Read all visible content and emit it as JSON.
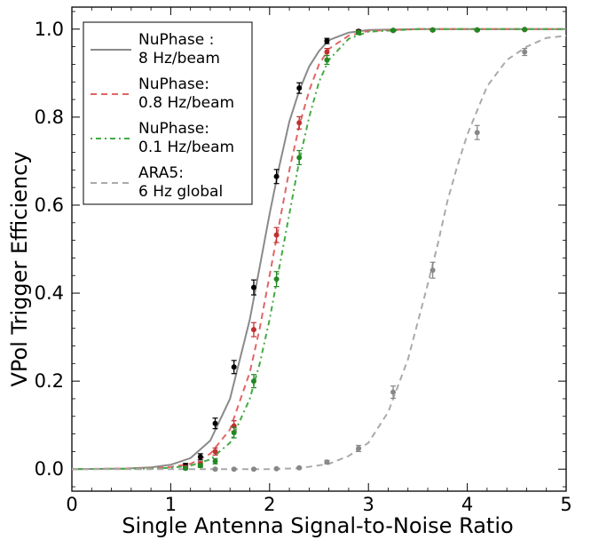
{
  "chart_data": {
    "type": "line",
    "xlabel": "Single Antenna Signal-to-Noise Ratio",
    "ylabel": "VPol Trigger Efficiency",
    "xlim": [
      0,
      5
    ],
    "ylim": [
      -0.05,
      1.05
    ],
    "x_ticks": [
      0,
      1,
      2,
      3,
      4,
      5
    ],
    "y_ticks": [
      0.0,
      0.2,
      0.4,
      0.6,
      0.8,
      1.0
    ],
    "x_tick_labels": [
      "0",
      "1",
      "2",
      "3",
      "4",
      "5"
    ],
    "y_tick_labels": [
      "0.0",
      "0.2",
      "0.4",
      "0.6",
      "0.8",
      "1.0"
    ],
    "grid": false,
    "legend_position": "top-left",
    "series": [
      {
        "name": "NuPhase :\n8 Hz/beam",
        "color": "#8a8a8a",
        "marker_color": "#000000",
        "linestyle": "solid",
        "curve": [
          [
            0,
            0
          ],
          [
            0.5,
            0.001
          ],
          [
            0.8,
            0.004
          ],
          [
            1.0,
            0.01
          ],
          [
            1.2,
            0.025
          ],
          [
            1.4,
            0.065
          ],
          [
            1.6,
            0.16
          ],
          [
            1.8,
            0.34
          ],
          [
            1.9,
            0.46
          ],
          [
            2.0,
            0.58
          ],
          [
            2.1,
            0.69
          ],
          [
            2.2,
            0.79
          ],
          [
            2.3,
            0.86
          ],
          [
            2.4,
            0.915
          ],
          [
            2.5,
            0.95
          ],
          [
            2.6,
            0.975
          ],
          [
            2.8,
            0.992
          ],
          [
            3.0,
            0.998
          ],
          [
            3.5,
            1.0
          ],
          [
            5,
            1.0
          ]
        ],
        "points": [
          {
            "x": 1.15,
            "y": 0.008,
            "err": 0.005
          },
          {
            "x": 1.3,
            "y": 0.028,
            "err": 0.007
          },
          {
            "x": 1.45,
            "y": 0.104,
            "err": 0.012
          },
          {
            "x": 1.64,
            "y": 0.232,
            "err": 0.015
          },
          {
            "x": 1.84,
            "y": 0.413,
            "err": 0.017
          },
          {
            "x": 2.07,
            "y": 0.665,
            "err": 0.016
          },
          {
            "x": 2.3,
            "y": 0.866,
            "err": 0.012
          },
          {
            "x": 2.58,
            "y": 0.973,
            "err": 0.006
          },
          {
            "x": 2.9,
            "y": 0.995,
            "err": 0.003
          },
          {
            "x": 3.25,
            "y": 0.997,
            "err": 0.002
          },
          {
            "x": 3.65,
            "y": 0.998,
            "err": 0.002
          },
          {
            "x": 4.1,
            "y": 0.998,
            "err": 0.002
          },
          {
            "x": 4.58,
            "y": 0.999,
            "err": 0.001
          }
        ]
      },
      {
        "name": "NuPhase:\n0.8 Hz/beam",
        "color": "#e06666",
        "marker_color": "#c03030",
        "linestyle": "dashed",
        "curve": [
          [
            0,
            0
          ],
          [
            0.8,
            0.002
          ],
          [
            1.0,
            0.005
          ],
          [
            1.2,
            0.012
          ],
          [
            1.4,
            0.035
          ],
          [
            1.6,
            0.09
          ],
          [
            1.8,
            0.22
          ],
          [
            1.9,
            0.32
          ],
          [
            2.0,
            0.44
          ],
          [
            2.1,
            0.56
          ],
          [
            2.2,
            0.68
          ],
          [
            2.3,
            0.78
          ],
          [
            2.4,
            0.86
          ],
          [
            2.5,
            0.92
          ],
          [
            2.6,
            0.955
          ],
          [
            2.8,
            0.985
          ],
          [
            3.0,
            0.996
          ],
          [
            3.5,
            1.0
          ],
          [
            5,
            1.0
          ]
        ],
        "points": [
          {
            "x": 1.15,
            "y": 0.004,
            "err": 0.004
          },
          {
            "x": 1.3,
            "y": 0.012,
            "err": 0.005
          },
          {
            "x": 1.45,
            "y": 0.04,
            "err": 0.008
          },
          {
            "x": 1.64,
            "y": 0.098,
            "err": 0.012
          },
          {
            "x": 1.84,
            "y": 0.317,
            "err": 0.016
          },
          {
            "x": 2.07,
            "y": 0.532,
            "err": 0.017
          },
          {
            "x": 2.3,
            "y": 0.787,
            "err": 0.014
          },
          {
            "x": 2.58,
            "y": 0.948,
            "err": 0.008
          },
          {
            "x": 2.9,
            "y": 0.993,
            "err": 0.003
          },
          {
            "x": 3.25,
            "y": 0.997,
            "err": 0.002
          },
          {
            "x": 3.65,
            "y": 0.998,
            "err": 0.002
          },
          {
            "x": 4.1,
            "y": 0.998,
            "err": 0.002
          },
          {
            "x": 4.58,
            "y": 0.999,
            "err": 0.001
          }
        ]
      },
      {
        "name": "NuPhase:\n0.1 Hz/beam",
        "color": "#44aa44",
        "marker_color": "#228822",
        "linestyle": "dashdot",
        "curve": [
          [
            0,
            0
          ],
          [
            0.8,
            0.001
          ],
          [
            1.0,
            0.003
          ],
          [
            1.2,
            0.008
          ],
          [
            1.4,
            0.022
          ],
          [
            1.6,
            0.06
          ],
          [
            1.8,
            0.16
          ],
          [
            1.9,
            0.24
          ],
          [
            2.0,
            0.34
          ],
          [
            2.1,
            0.46
          ],
          [
            2.2,
            0.58
          ],
          [
            2.3,
            0.7
          ],
          [
            2.4,
            0.8
          ],
          [
            2.5,
            0.88
          ],
          [
            2.6,
            0.93
          ],
          [
            2.8,
            0.978
          ],
          [
            3.0,
            0.994
          ],
          [
            3.5,
            1.0
          ],
          [
            5,
            1.0
          ]
        ],
        "points": [
          {
            "x": 1.15,
            "y": 0.002,
            "err": 0.003
          },
          {
            "x": 1.3,
            "y": 0.008,
            "err": 0.004
          },
          {
            "x": 1.45,
            "y": 0.018,
            "err": 0.006
          },
          {
            "x": 1.64,
            "y": 0.083,
            "err": 0.012
          },
          {
            "x": 1.84,
            "y": 0.2,
            "err": 0.015
          },
          {
            "x": 2.07,
            "y": 0.432,
            "err": 0.017
          },
          {
            "x": 2.3,
            "y": 0.708,
            "err": 0.016
          },
          {
            "x": 2.58,
            "y": 0.93,
            "err": 0.01
          },
          {
            "x": 2.9,
            "y": 0.992,
            "err": 0.004
          },
          {
            "x": 3.25,
            "y": 0.997,
            "err": 0.002
          },
          {
            "x": 3.65,
            "y": 0.998,
            "err": 0.002
          },
          {
            "x": 4.1,
            "y": 0.998,
            "err": 0.002
          },
          {
            "x": 4.58,
            "y": 0.999,
            "err": 0.001
          }
        ]
      },
      {
        "name": "ARA5:\n6 Hz global",
        "color": "#aaaaaa",
        "marker_color": "#888888",
        "linestyle": "dashed",
        "curve": [
          [
            0,
            0
          ],
          [
            2.0,
            0.0
          ],
          [
            2.3,
            0.002
          ],
          [
            2.6,
            0.012
          ],
          [
            2.8,
            0.03
          ],
          [
            3.0,
            0.06
          ],
          [
            3.2,
            0.13
          ],
          [
            3.4,
            0.25
          ],
          [
            3.6,
            0.42
          ],
          [
            3.7,
            0.51
          ],
          [
            3.8,
            0.61
          ],
          [
            3.9,
            0.69
          ],
          [
            4.0,
            0.76
          ],
          [
            4.2,
            0.87
          ],
          [
            4.4,
            0.93
          ],
          [
            4.6,
            0.96
          ],
          [
            4.8,
            0.98
          ],
          [
            5,
            0.985
          ]
        ],
        "points": [
          {
            "x": 1.45,
            "y": 0.0,
            "err": 0.001
          },
          {
            "x": 1.64,
            "y": 0.0,
            "err": 0.001
          },
          {
            "x": 1.84,
            "y": 0.0,
            "err": 0.001
          },
          {
            "x": 2.07,
            "y": 0.001,
            "err": 0.001
          },
          {
            "x": 2.3,
            "y": 0.003,
            "err": 0.002
          },
          {
            "x": 2.58,
            "y": 0.016,
            "err": 0.004
          },
          {
            "x": 2.9,
            "y": 0.047,
            "err": 0.007
          },
          {
            "x": 3.25,
            "y": 0.175,
            "err": 0.014
          },
          {
            "x": 3.65,
            "y": 0.452,
            "err": 0.018
          },
          {
            "x": 4.1,
            "y": 0.765,
            "err": 0.016
          },
          {
            "x": 4.58,
            "y": 0.948,
            "err": 0.008
          }
        ]
      }
    ]
  }
}
